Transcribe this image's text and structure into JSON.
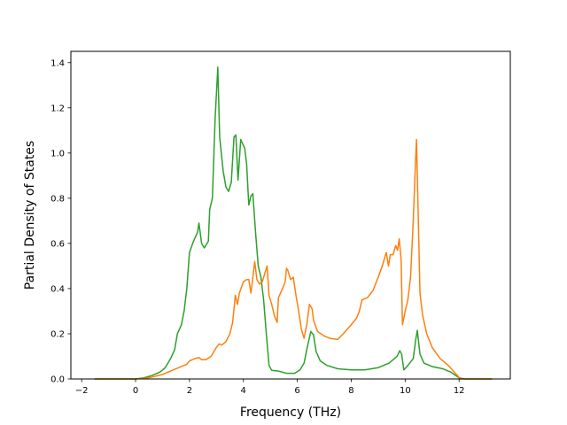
{
  "chart_data": {
    "type": "line",
    "title": "",
    "xlabel": "Frequency (THz)",
    "ylabel": "Partial Density of States",
    "xlim": [
      -2.4,
      13.9
    ],
    "ylim": [
      0,
      1.45
    ],
    "xticks": [
      -2,
      0,
      2,
      4,
      6,
      8,
      10,
      12
    ],
    "yticks": [
      0.0,
      0.2,
      0.4,
      0.6,
      0.8,
      1.0,
      1.2,
      1.4
    ],
    "xtick_labels": [
      "−2",
      "0",
      "2",
      "4",
      "6",
      "8",
      "10",
      "12"
    ],
    "ytick_labels": [
      "0.0",
      "0.2",
      "0.4",
      "0.6",
      "0.8",
      "1.0",
      "1.2",
      "1.4"
    ],
    "grid": false,
    "legend": "none",
    "series": [
      {
        "color": "#2ca02c",
        "points": [
          [
            -1.5,
            0.0
          ],
          [
            0.0,
            0.0
          ],
          [
            0.3,
            0.005
          ],
          [
            0.6,
            0.015
          ],
          [
            0.9,
            0.03
          ],
          [
            1.1,
            0.05
          ],
          [
            1.3,
            0.09
          ],
          [
            1.45,
            0.13
          ],
          [
            1.55,
            0.2
          ],
          [
            1.7,
            0.24
          ],
          [
            1.8,
            0.3
          ],
          [
            1.9,
            0.4
          ],
          [
            2.0,
            0.56
          ],
          [
            2.15,
            0.61
          ],
          [
            2.3,
            0.65
          ],
          [
            2.35,
            0.69
          ],
          [
            2.45,
            0.6
          ],
          [
            2.55,
            0.58
          ],
          [
            2.7,
            0.61
          ],
          [
            2.75,
            0.75
          ],
          [
            2.85,
            0.8
          ],
          [
            2.95,
            1.15
          ],
          [
            3.05,
            1.38
          ],
          [
            3.12,
            1.07
          ],
          [
            3.25,
            0.92
          ],
          [
            3.35,
            0.85
          ],
          [
            3.45,
            0.83
          ],
          [
            3.55,
            0.87
          ],
          [
            3.65,
            1.07
          ],
          [
            3.72,
            1.08
          ],
          [
            3.8,
            0.88
          ],
          [
            3.9,
            1.06
          ],
          [
            4.05,
            1.02
          ],
          [
            4.12,
            0.95
          ],
          [
            4.2,
            0.77
          ],
          [
            4.28,
            0.81
          ],
          [
            4.35,
            0.82
          ],
          [
            4.45,
            0.65
          ],
          [
            4.55,
            0.5
          ],
          [
            4.65,
            0.45
          ],
          [
            4.75,
            0.35
          ],
          [
            4.85,
            0.2
          ],
          [
            4.95,
            0.06
          ],
          [
            5.05,
            0.038
          ],
          [
            5.3,
            0.035
          ],
          [
            5.6,
            0.025
          ],
          [
            5.9,
            0.025
          ],
          [
            6.1,
            0.04
          ],
          [
            6.25,
            0.07
          ],
          [
            6.35,
            0.13
          ],
          [
            6.5,
            0.21
          ],
          [
            6.6,
            0.195
          ],
          [
            6.7,
            0.12
          ],
          [
            6.85,
            0.08
          ],
          [
            7.1,
            0.06
          ],
          [
            7.5,
            0.045
          ],
          [
            8.0,
            0.04
          ],
          [
            8.5,
            0.04
          ],
          [
            9.0,
            0.05
          ],
          [
            9.4,
            0.07
          ],
          [
            9.7,
            0.1
          ],
          [
            9.8,
            0.125
          ],
          [
            9.87,
            0.11
          ],
          [
            9.95,
            0.04
          ],
          [
            10.1,
            0.06
          ],
          [
            10.3,
            0.09
          ],
          [
            10.4,
            0.18
          ],
          [
            10.45,
            0.215
          ],
          [
            10.55,
            0.11
          ],
          [
            10.7,
            0.07
          ],
          [
            11.0,
            0.055
          ],
          [
            11.4,
            0.045
          ],
          [
            11.7,
            0.03
          ],
          [
            12.0,
            0.005
          ],
          [
            12.2,
            0.0
          ],
          [
            13.2,
            0.0
          ]
        ]
      },
      {
        "color": "#ff7f0e",
        "points": [
          [
            -1.5,
            0.0
          ],
          [
            0.0,
            0.0
          ],
          [
            0.3,
            0.002
          ],
          [
            0.6,
            0.008
          ],
          [
            1.0,
            0.02
          ],
          [
            1.3,
            0.035
          ],
          [
            1.6,
            0.05
          ],
          [
            1.9,
            0.065
          ],
          [
            2.0,
            0.08
          ],
          [
            2.2,
            0.09
          ],
          [
            2.35,
            0.095
          ],
          [
            2.45,
            0.085
          ],
          [
            2.6,
            0.085
          ],
          [
            2.8,
            0.1
          ],
          [
            2.9,
            0.12
          ],
          [
            3.0,
            0.14
          ],
          [
            3.1,
            0.155
          ],
          [
            3.2,
            0.15
          ],
          [
            3.35,
            0.165
          ],
          [
            3.5,
            0.2
          ],
          [
            3.6,
            0.25
          ],
          [
            3.7,
            0.37
          ],
          [
            3.78,
            0.33
          ],
          [
            3.85,
            0.38
          ],
          [
            4.0,
            0.43
          ],
          [
            4.12,
            0.44
          ],
          [
            4.2,
            0.44
          ],
          [
            4.28,
            0.38
          ],
          [
            4.35,
            0.45
          ],
          [
            4.42,
            0.52
          ],
          [
            4.5,
            0.44
          ],
          [
            4.6,
            0.42
          ],
          [
            4.7,
            0.43
          ],
          [
            4.8,
            0.47
          ],
          [
            4.88,
            0.5
          ],
          [
            4.95,
            0.37
          ],
          [
            5.05,
            0.33
          ],
          [
            5.15,
            0.28
          ],
          [
            5.25,
            0.25
          ],
          [
            5.3,
            0.36
          ],
          [
            5.45,
            0.4
          ],
          [
            5.55,
            0.43
          ],
          [
            5.6,
            0.49
          ],
          [
            5.65,
            0.48
          ],
          [
            5.75,
            0.44
          ],
          [
            5.85,
            0.45
          ],
          [
            5.95,
            0.37
          ],
          [
            6.05,
            0.3
          ],
          [
            6.15,
            0.22
          ],
          [
            6.25,
            0.18
          ],
          [
            6.35,
            0.24
          ],
          [
            6.45,
            0.33
          ],
          [
            6.55,
            0.31
          ],
          [
            6.6,
            0.26
          ],
          [
            6.75,
            0.21
          ],
          [
            7.0,
            0.19
          ],
          [
            7.2,
            0.18
          ],
          [
            7.5,
            0.175
          ],
          [
            7.7,
            0.2
          ],
          [
            8.0,
            0.24
          ],
          [
            8.2,
            0.27
          ],
          [
            8.3,
            0.3
          ],
          [
            8.4,
            0.35
          ],
          [
            8.6,
            0.36
          ],
          [
            8.8,
            0.39
          ],
          [
            9.0,
            0.45
          ],
          [
            9.15,
            0.5
          ],
          [
            9.3,
            0.56
          ],
          [
            9.38,
            0.5
          ],
          [
            9.45,
            0.55
          ],
          [
            9.55,
            0.55
          ],
          [
            9.65,
            0.59
          ],
          [
            9.72,
            0.57
          ],
          [
            9.78,
            0.62
          ],
          [
            9.85,
            0.53
          ],
          [
            9.9,
            0.24
          ],
          [
            10.0,
            0.3
          ],
          [
            10.1,
            0.35
          ],
          [
            10.2,
            0.45
          ],
          [
            10.3,
            0.7
          ],
          [
            10.38,
            0.95
          ],
          [
            10.42,
            1.06
          ],
          [
            10.48,
            0.75
          ],
          [
            10.55,
            0.38
          ],
          [
            10.65,
            0.28
          ],
          [
            10.8,
            0.2
          ],
          [
            11.0,
            0.14
          ],
          [
            11.3,
            0.09
          ],
          [
            11.6,
            0.06
          ],
          [
            11.9,
            0.02
          ],
          [
            12.05,
            0.0
          ],
          [
            13.2,
            0.0
          ]
        ]
      }
    ]
  }
}
